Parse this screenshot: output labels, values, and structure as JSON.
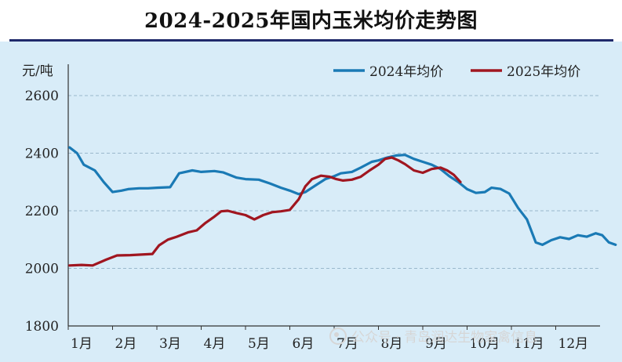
{
  "chart_data": {
    "type": "line",
    "title": "2024-2025年国内玉米均价走势图",
    "ylabel": "元/吨",
    "xlabel": "",
    "ylim": [
      1800,
      2600
    ],
    "yticks": [
      "2600",
      "2400",
      "2200",
      "2000",
      "1800"
    ],
    "ytick_values": [
      2600,
      2400,
      2200,
      2000,
      1800
    ],
    "xticks": [
      "1月",
      "2月",
      "3月",
      "4月",
      "5月",
      "6月",
      "7月",
      "8月",
      "9月",
      "10月",
      "11月",
      "12月"
    ],
    "xlim": [
      0,
      12
    ],
    "grid": "horizontal-dashed",
    "legend_position": "top-right",
    "series": [
      {
        "name": "2024年均价",
        "color": "#1a7ab5",
        "x": [
          0.03,
          0.2,
          0.35,
          0.6,
          0.8,
          1.0,
          1.2,
          1.35,
          1.6,
          1.8,
          2.0,
          2.3,
          2.5,
          2.8,
          3.0,
          3.3,
          3.5,
          3.8,
          4.0,
          4.3,
          4.55,
          4.8,
          5.0,
          5.2,
          5.35,
          5.6,
          5.8,
          6.0,
          6.15,
          6.4,
          6.6,
          6.85,
          7.0,
          7.2,
          7.4,
          7.6,
          7.8,
          8.0,
          8.2,
          8.4,
          8.6,
          8.8,
          9.0,
          9.2,
          9.4,
          9.55,
          9.75,
          9.95,
          10.15,
          10.35,
          10.55,
          10.7,
          10.9,
          11.1,
          11.3,
          11.5,
          11.7,
          11.9,
          12.05,
          12.2,
          12.35
        ],
        "values": [
          2420,
          2400,
          2360,
          2340,
          2300,
          2265,
          2270,
          2275,
          2278,
          2278,
          2280,
          2282,
          2330,
          2340,
          2335,
          2338,
          2333,
          2315,
          2310,
          2308,
          2295,
          2280,
          2270,
          2258,
          2265,
          2290,
          2310,
          2320,
          2330,
          2335,
          2350,
          2370,
          2375,
          2385,
          2392,
          2394,
          2380,
          2370,
          2360,
          2345,
          2320,
          2300,
          2275,
          2262,
          2265,
          2280,
          2276,
          2260,
          2210,
          2170,
          2090,
          2082,
          2098,
          2108,
          2102,
          2115,
          2110,
          2122,
          2115,
          2090,
          2082
        ]
      },
      {
        "name": "2025年均价",
        "color": "#a01620",
        "x": [
          0.03,
          0.3,
          0.55,
          0.85,
          1.1,
          1.4,
          1.65,
          1.9,
          2.05,
          2.25,
          2.45,
          2.7,
          2.9,
          3.1,
          3.3,
          3.45,
          3.6,
          3.8,
          4.0,
          4.2,
          4.4,
          4.6,
          4.8,
          5.0,
          5.2,
          5.35,
          5.5,
          5.7,
          5.9,
          6.05,
          6.2,
          6.4,
          6.6,
          6.8,
          7.0,
          7.15,
          7.3,
          7.45,
          7.6,
          7.8,
          8.0,
          8.2,
          8.4,
          8.55,
          8.7,
          8.85
        ],
        "values": [
          2010,
          2012,
          2010,
          2030,
          2045,
          2046,
          2048,
          2050,
          2080,
          2100,
          2110,
          2125,
          2132,
          2158,
          2180,
          2198,
          2200,
          2192,
          2185,
          2170,
          2185,
          2195,
          2198,
          2203,
          2240,
          2285,
          2310,
          2322,
          2318,
          2310,
          2305,
          2308,
          2318,
          2340,
          2360,
          2380,
          2385,
          2375,
          2362,
          2340,
          2332,
          2345,
          2350,
          2340,
          2325,
          2300
        ]
      }
    ]
  },
  "watermark": {
    "text": "公众号 · 青岛润达生物家禽信息"
  }
}
